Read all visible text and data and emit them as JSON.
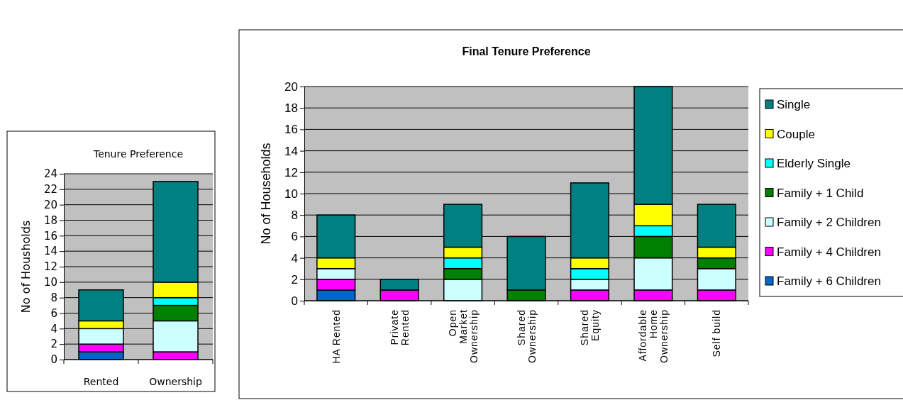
{
  "chart_data": [
    {
      "type": "bar",
      "title": "Tenure Preference",
      "ylabel": "No of Housholds",
      "categories": [
        "Rented",
        "Ownership"
      ],
      "stacked": true,
      "ylim": [
        0,
        24
      ],
      "yticks": [
        0,
        2,
        4,
        6,
        8,
        10,
        12,
        14,
        16,
        18,
        20,
        22,
        24
      ],
      "grid": "y",
      "legend": false,
      "series": [
        {
          "color": "#0066cc",
          "values": [
            1,
            0
          ]
        },
        {
          "color": "#ff00ff",
          "values": [
            1,
            1
          ]
        },
        {
          "color": "#ccffff",
          "values": [
            2,
            4
          ]
        },
        {
          "color": "#008000",
          "values": [
            0,
            2
          ]
        },
        {
          "color": "#00ffff",
          "values": [
            0,
            1
          ]
        },
        {
          "color": "#ffff00",
          "values": [
            1,
            2
          ]
        },
        {
          "color": "#008080",
          "values": [
            4,
            13
          ]
        }
      ]
    },
    {
      "type": "bar",
      "title": "Final Tenure Preference",
      "ylabel": "No of Households",
      "categories": [
        "HA Rented",
        "Private Rented",
        "Open Market Ownership",
        "Shared Ownership",
        "Shared Equity",
        "Affordable Home Ownership",
        "Self build"
      ],
      "stacked": true,
      "ylim": [
        0,
        20
      ],
      "yticks": [
        0,
        2,
        4,
        6,
        8,
        10,
        12,
        14,
        16,
        18,
        20
      ],
      "grid": "y",
      "legend": "right",
      "series": [
        {
          "name": "Family + 6 Children",
          "color": "#0066cc",
          "values": [
            1,
            0,
            0,
            0,
            0,
            0,
            0
          ]
        },
        {
          "name": "Family + 4 Children",
          "color": "#ff00ff",
          "values": [
            1,
            1,
            0,
            0,
            1,
            1,
            1
          ]
        },
        {
          "name": "Family + 2 Children",
          "color": "#ccffff",
          "values": [
            1,
            0,
            2,
            0,
            1,
            3,
            2
          ]
        },
        {
          "name": "Family + 1 Child",
          "color": "#008000",
          "values": [
            0,
            0,
            1,
            1,
            0,
            2,
            1
          ]
        },
        {
          "name": "Elderly Single",
          "color": "#00ffff",
          "values": [
            0,
            0,
            1,
            0,
            1,
            1,
            0
          ]
        },
        {
          "name": "Couple",
          "color": "#ffff00",
          "values": [
            1,
            0,
            1,
            0,
            1,
            2,
            1
          ]
        },
        {
          "name": "Single",
          "color": "#008080",
          "values": [
            4,
            1,
            4,
            5,
            7,
            11,
            4
          ]
        }
      ]
    }
  ]
}
